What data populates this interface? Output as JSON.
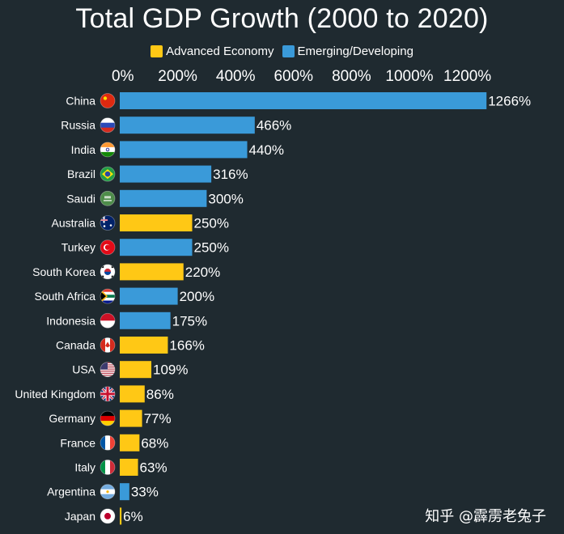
{
  "chart_data": {
    "type": "bar",
    "orientation": "horizontal",
    "title": "Total GDP Growth (2000 to 2020)",
    "xlabel": "",
    "ylabel": "",
    "xlim": [
      0,
      1250
    ],
    "x_ticks": [
      "0%",
      "200%",
      "400%",
      "600%",
      "800%",
      "1000%",
      "1200%"
    ],
    "x_tick_values": [
      0,
      200,
      400,
      600,
      800,
      1000,
      1200
    ],
    "grid": false,
    "legend_position": "top-center",
    "legend": [
      {
        "name": "Advanced Economy",
        "color": "#ffc815"
      },
      {
        "name": "Emerging/Developing",
        "color": "#3a9ad9"
      }
    ],
    "categories": [
      "China",
      "Russia",
      "India",
      "Brazil",
      "Saudi",
      "Australia",
      "Turkey",
      "South Korea",
      "South Africa",
      "Indonesia",
      "Canada",
      "USA",
      "United Kingdom",
      "Germany",
      "France",
      "Italy",
      "Argentina",
      "Japan"
    ],
    "values": [
      1266,
      466,
      440,
      316,
      300,
      250,
      250,
      220,
      200,
      175,
      166,
      109,
      86,
      77,
      68,
      63,
      33,
      6
    ],
    "value_labels": [
      "1266%",
      "466%",
      "440%",
      "316%",
      "300%",
      "250%",
      "250%",
      "220%",
      "200%",
      "175%",
      "166%",
      "109%",
      "86%",
      "77%",
      "68%",
      "63%",
      "33%",
      "6%"
    ],
    "groups": [
      "Emerging/Developing",
      "Emerging/Developing",
      "Emerging/Developing",
      "Emerging/Developing",
      "Emerging/Developing",
      "Advanced Economy",
      "Emerging/Developing",
      "Advanced Economy",
      "Emerging/Developing",
      "Emerging/Developing",
      "Advanced Economy",
      "Advanced Economy",
      "Advanced Economy",
      "Advanced Economy",
      "Advanced Economy",
      "Advanced Economy",
      "Emerging/Developing",
      "Advanced Economy"
    ],
    "flag_icons": [
      "china-flag-icon",
      "russia-flag-icon",
      "india-flag-icon",
      "brazil-flag-icon",
      "saudi-flag-icon",
      "australia-flag-icon",
      "turkey-flag-icon",
      "south-korea-flag-icon",
      "south-africa-flag-icon",
      "indonesia-flag-icon",
      "canada-flag-icon",
      "usa-flag-icon",
      "uk-flag-icon",
      "germany-flag-icon",
      "france-flag-icon",
      "italy-flag-icon",
      "argentina-flag-icon",
      "japan-flag-icon"
    ]
  },
  "watermark": "知乎 @霹雳老兔子"
}
